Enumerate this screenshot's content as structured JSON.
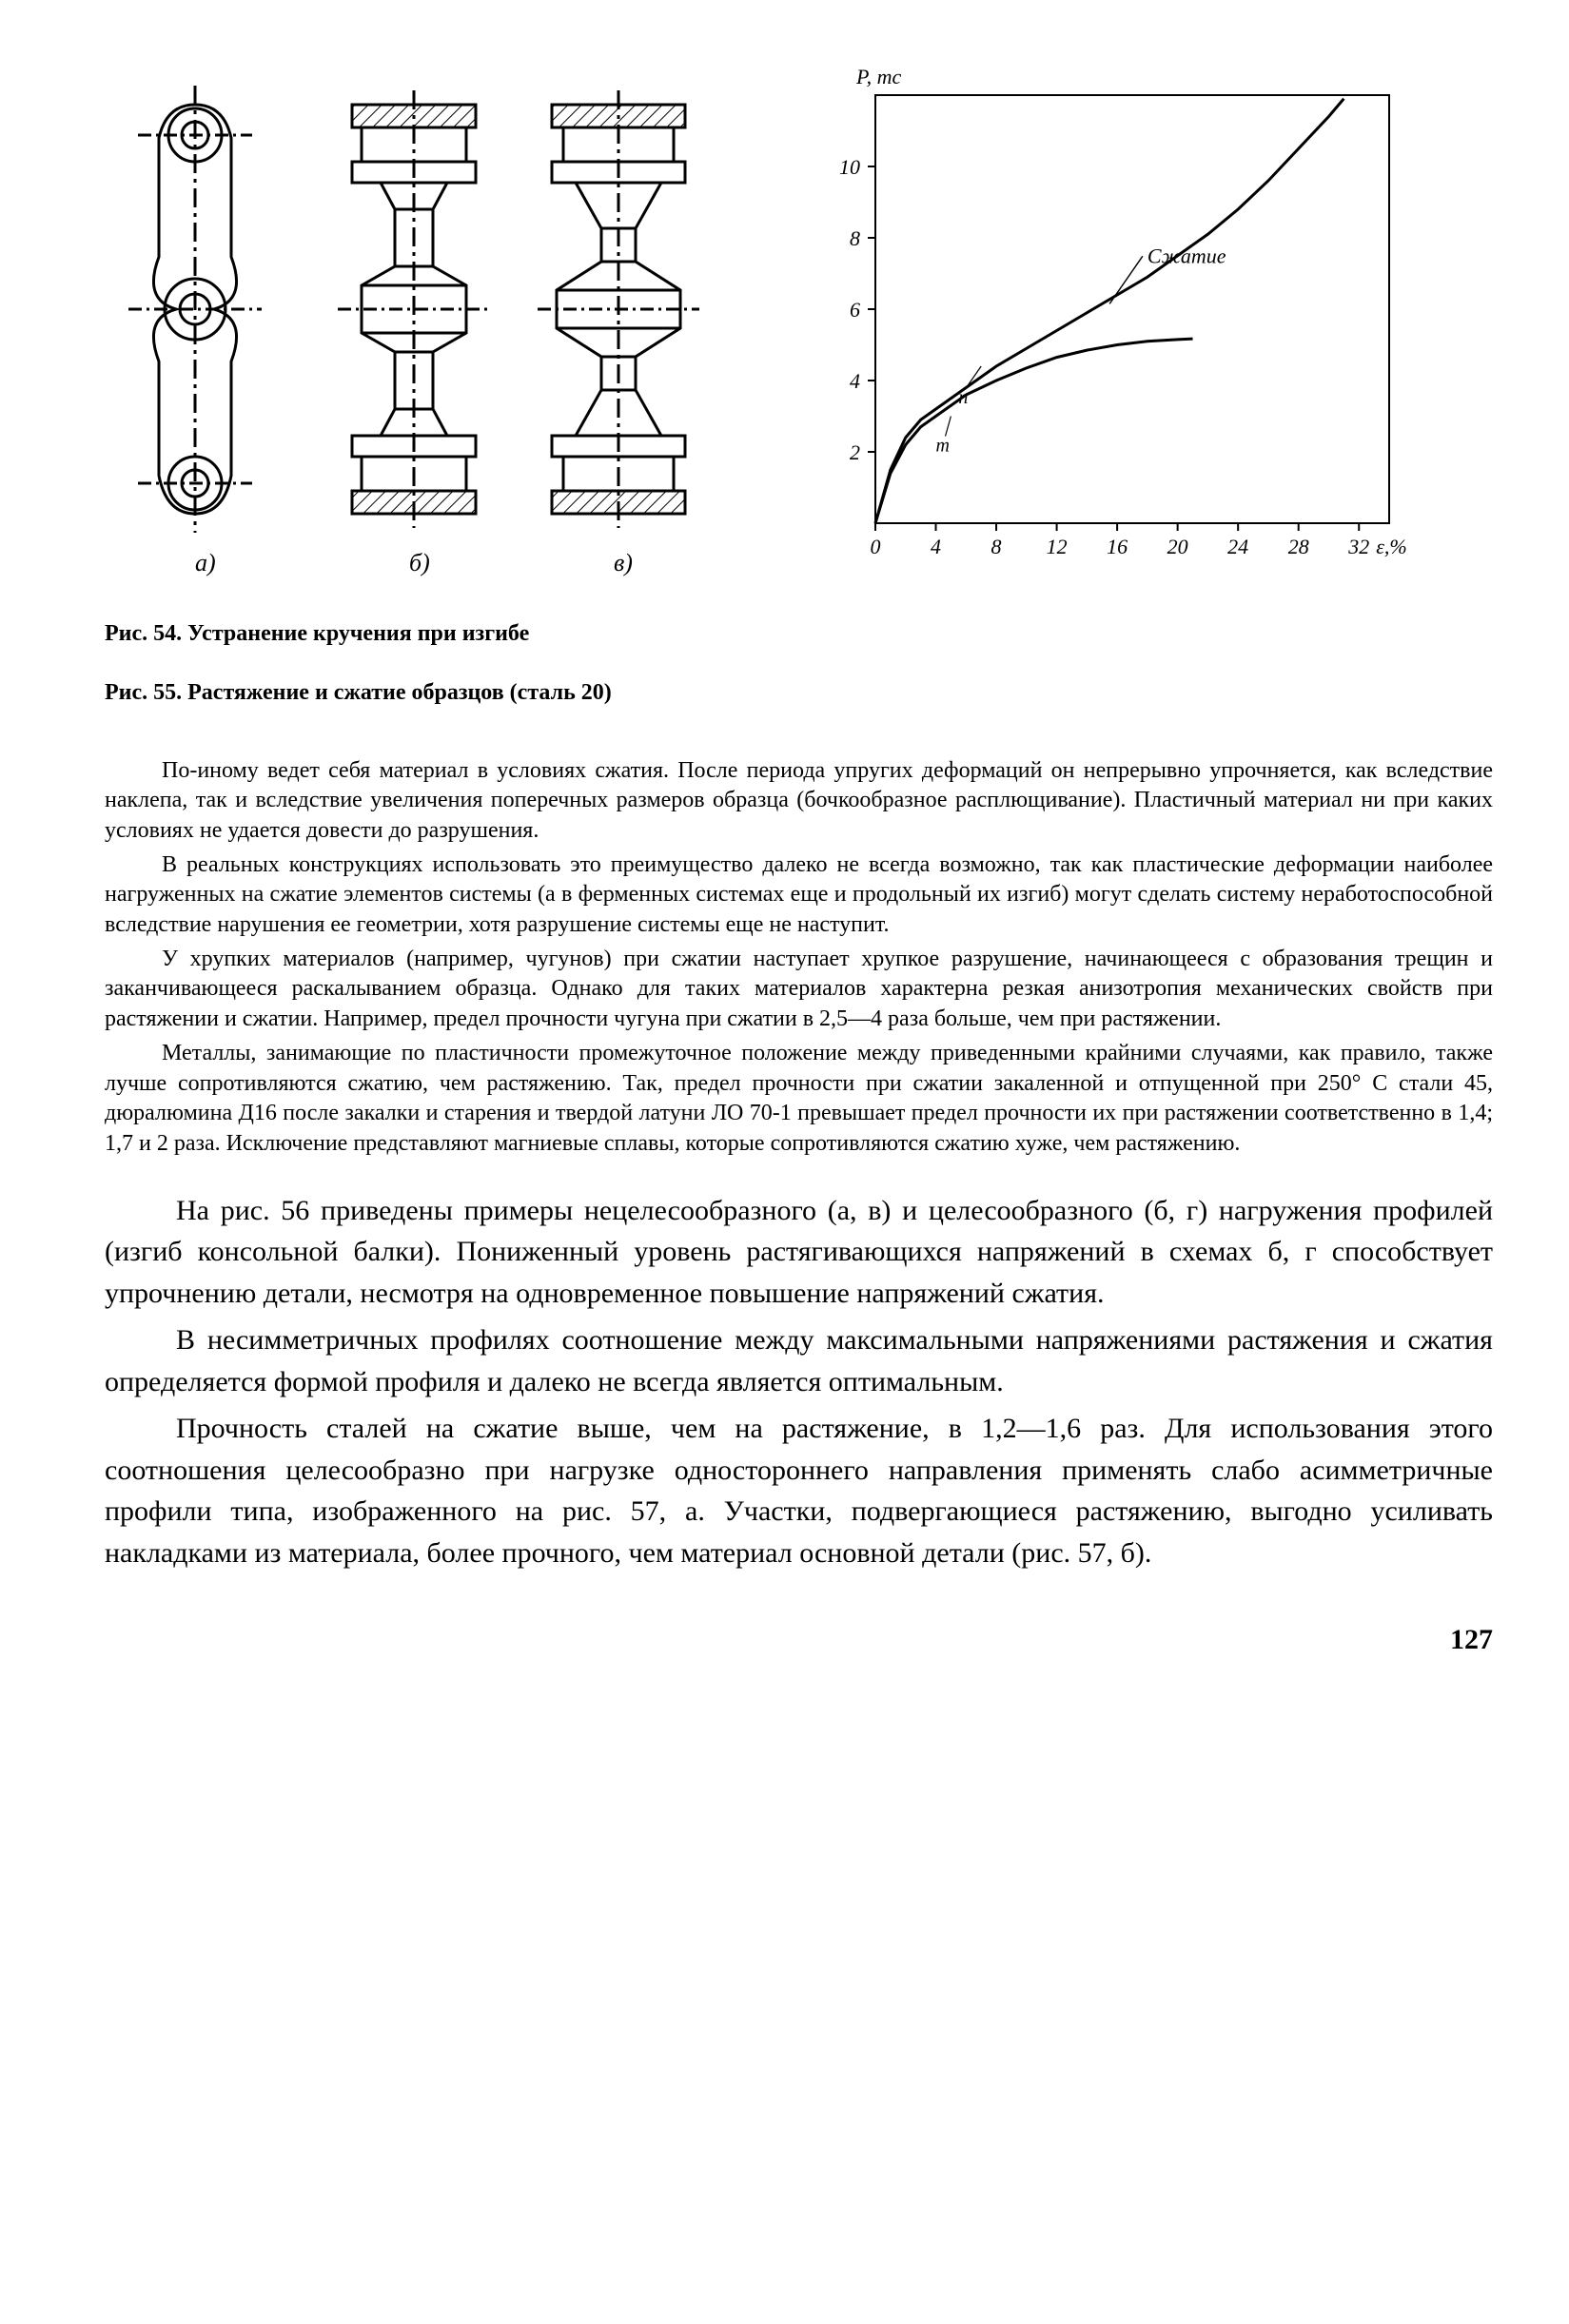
{
  "figure54": {
    "caption": "Рис. 54. Устранение кручения при изгибе",
    "sublabels": [
      "а)",
      "б)",
      "в)"
    ],
    "stroke": "#000000",
    "fill_hatch": "#000000",
    "background": "#ffffff"
  },
  "figure55": {
    "caption": "Рис. 55. Растяжение и сжатие образцов (сталь 20)",
    "type": "line",
    "xaxis_label": "ε,%",
    "yaxis_label": "P, mc",
    "xlim": [
      0,
      34
    ],
    "ylim": [
      0,
      12
    ],
    "xticks": [
      0,
      4,
      8,
      12,
      16,
      20,
      24,
      28,
      32
    ],
    "yticks": [
      0,
      2,
      4,
      6,
      8,
      10
    ],
    "line_width": 3,
    "axis_width": 2,
    "grid_color": "#000000",
    "background_color": "#ffffff",
    "font_size_axis": 22,
    "font_style_axis": "italic",
    "curve_compression": {
      "label": "Сжатие",
      "label_pos": [
        18,
        7.3
      ],
      "points": [
        [
          0,
          0
        ],
        [
          1,
          1.5
        ],
        [
          2,
          2.4
        ],
        [
          3,
          2.9
        ],
        [
          4,
          3.2
        ],
        [
          6,
          3.8
        ],
        [
          8,
          4.4
        ],
        [
          10,
          4.9
        ],
        [
          12,
          5.4
        ],
        [
          14,
          5.9
        ],
        [
          16,
          6.4
        ],
        [
          18,
          6.9
        ],
        [
          20,
          7.5
        ],
        [
          22,
          8.1
        ],
        [
          24,
          8.8
        ],
        [
          26,
          9.6
        ],
        [
          28,
          10.5
        ],
        [
          30,
          11.4
        ],
        [
          31,
          11.9
        ]
      ]
    },
    "curve_tension": {
      "label": "",
      "points": [
        [
          0,
          0
        ],
        [
          1,
          1.4
        ],
        [
          2,
          2.2
        ],
        [
          3,
          2.7
        ],
        [
          4,
          3.0
        ],
        [
          6,
          3.6
        ],
        [
          8,
          4.0
        ],
        [
          10,
          4.35
        ],
        [
          12,
          4.65
        ],
        [
          14,
          4.85
        ],
        [
          16,
          5.0
        ],
        [
          18,
          5.1
        ],
        [
          20,
          5.15
        ],
        [
          21,
          5.17
        ]
      ]
    },
    "marks": {
      "n": [
        5.5,
        3.9
      ],
      "m": [
        4,
        2.6
      ]
    }
  },
  "paragraphs_small": {
    "p1": "По-иному ведет себя материал в условиях сжатия. После периода упругих деформаций он непрерывно упрочняется, как вследствие наклепа, так и вследствие увеличения поперечных размеров образца (бочкообразное расплющивание). Пластичный материал ни при каких условиях не удается довести до разрушения.",
    "p2": "В реальных конструкциях использовать это преимущество далеко не всегда возможно, так как пластические деформации наиболее нагруженных на сжатие элементов системы (а в ферменных системах еще и продольный их изгиб) могут сделать систему неработоспособной вследствие нарушения ее геометрии, хотя разрушение системы еще не наступит.",
    "p3": "У хрупких материалов (например, чугунов) при сжатии наступает хрупкое разрушение, начинающееся с образования трещин и заканчивающееся раскалыванием образца. Однако для таких материалов характерна резкая анизотропия механических свойств при растяжении и сжатии. Например, предел прочности чугуна при сжатии в 2,5—4 раза больше, чем при растяжении.",
    "p4": "Металлы, занимающие по пластичности промежуточное положение между приведенными крайними случаями, как правило, также лучше сопротивляются сжатию, чем растяжению. Так, предел прочности при сжатии закаленной и отпущенной при 250° С стали 45, дюралюмина Д16 после закалки и старения и твердой латуни ЛО 70-1 превышает предел прочности их при растяжении соответственно в 1,4; 1,7 и 2 раза. Исключение представляют магниевые сплавы, которые сопротивляются сжатию хуже, чем растяжению."
  },
  "paragraphs_large": {
    "p5": "На рис. 56 приведены примеры нецелесообразного (а, в) и целесообразного (б, г) нагружения профилей (изгиб консольной балки). Пониженный уровень растягивающихся напряжений в схемах б, г способствует упрочнению детали, несмотря на одновременное повышение напряжений сжатия.",
    "p6": "В несимметричных профилях соотношение между максимальными напряжениями растяжения и сжатия определяется формой профиля и далеко не всегда является оптимальным.",
    "p7": "Прочность сталей на сжатие выше, чем на растяжение, в 1,2—1,6 раз. Для использования этого соотношения целесообразно при нагрузке одностороннего направления применять слабо асимметричные профили типа, изображенного на рис. 57, а. Участки, подвергающиеся растяжению, выгодно усиливать накладками из материала, более прочного, чем материал основной детали (рис. 57, б)."
  },
  "page_number": "127"
}
